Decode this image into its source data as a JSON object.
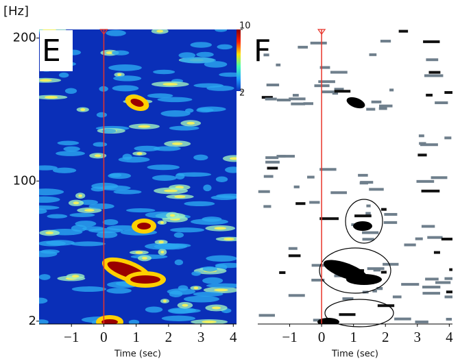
{
  "chart_data": [
    {
      "type": "heatmap",
      "panel_label": "E",
      "ylabel": "[Hz]",
      "xlabel": "Time (sec)",
      "xlim": [
        -2,
        4.1
      ],
      "xticks": [
        {
          "value": -1,
          "label": "−1"
        },
        0,
        1,
        2,
        3,
        4
      ],
      "ylim": [
        0,
        206
      ],
      "yticks": [
        2,
        100,
        200
      ],
      "colorbar": {
        "lim": [
          2,
          10
        ],
        "ticks": [
          2,
          10
        ]
      },
      "event_marker": {
        "x": 0,
        "color": "#e8342a"
      }
    },
    {
      "type": "heatmap",
      "panel_label": "F",
      "xlabel": "Time (sec)",
      "xlim": [
        -2,
        4.1
      ],
      "xticks": [
        {
          "value": -1,
          "label": "−1"
        },
        0,
        1,
        2,
        3,
        4
      ],
      "ylim": [
        0,
        206
      ],
      "event_marker": {
        "x": 0,
        "color": "#e8342a"
      }
    }
  ]
}
